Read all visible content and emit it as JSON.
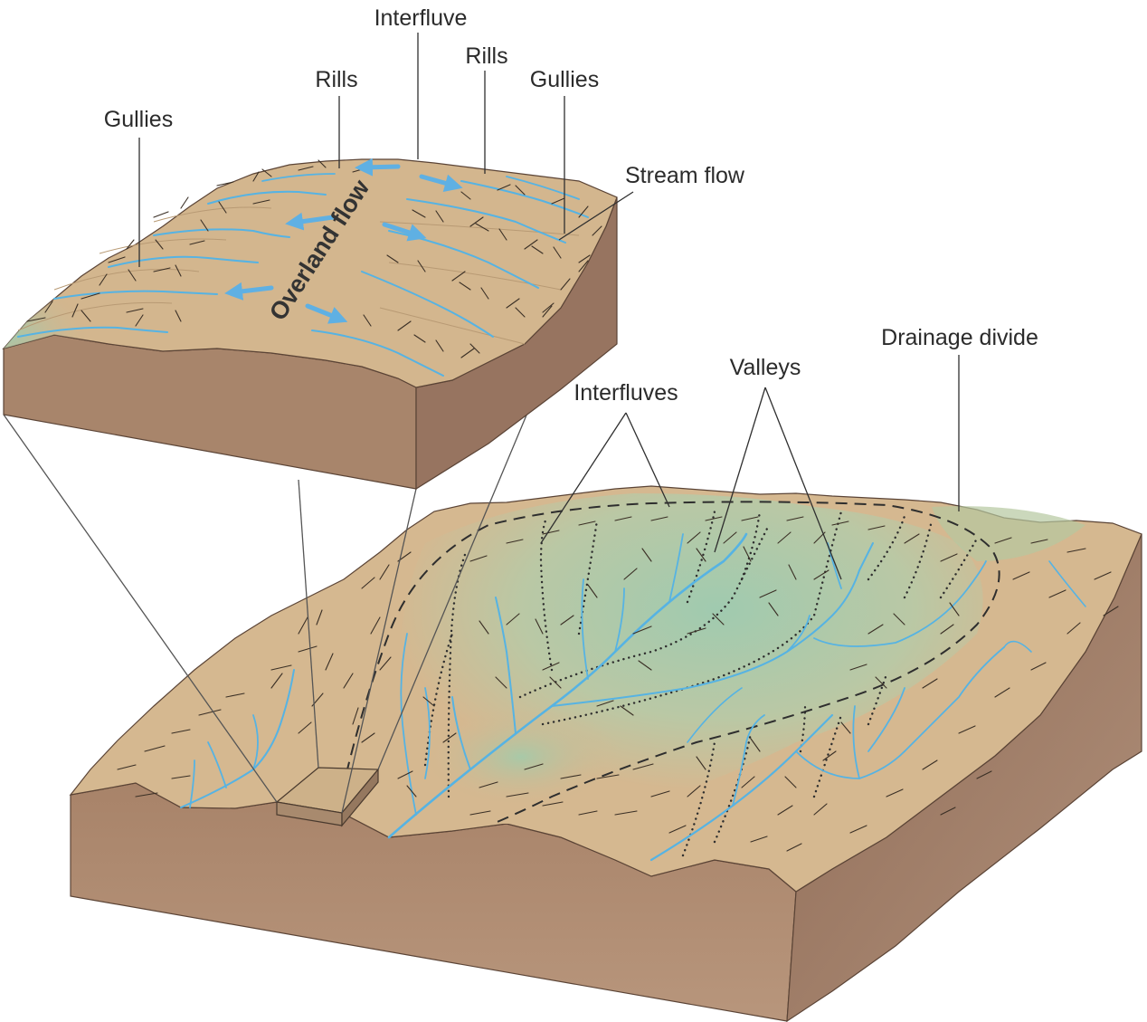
{
  "labels": {
    "interfluve": "Interfluve",
    "rills_left": "Rills",
    "rills_right": "Rills",
    "gullies_left": "Gullies",
    "gullies_right": "Gullies",
    "stream_flow": "Stream flow",
    "overland_flow": "Overland flow",
    "drainage_divide": "Drainage divide",
    "valleys": "Valleys",
    "interfluves": "Interfluves"
  },
  "colors": {
    "land_tan": "#d5b890",
    "land_green": "#9ecbb0",
    "block_side_light": "#b08a6c",
    "block_side_dark": "#8e6a55",
    "stream_blue": "#56b3e3",
    "arrow_blue": "#5fb0e3"
  }
}
